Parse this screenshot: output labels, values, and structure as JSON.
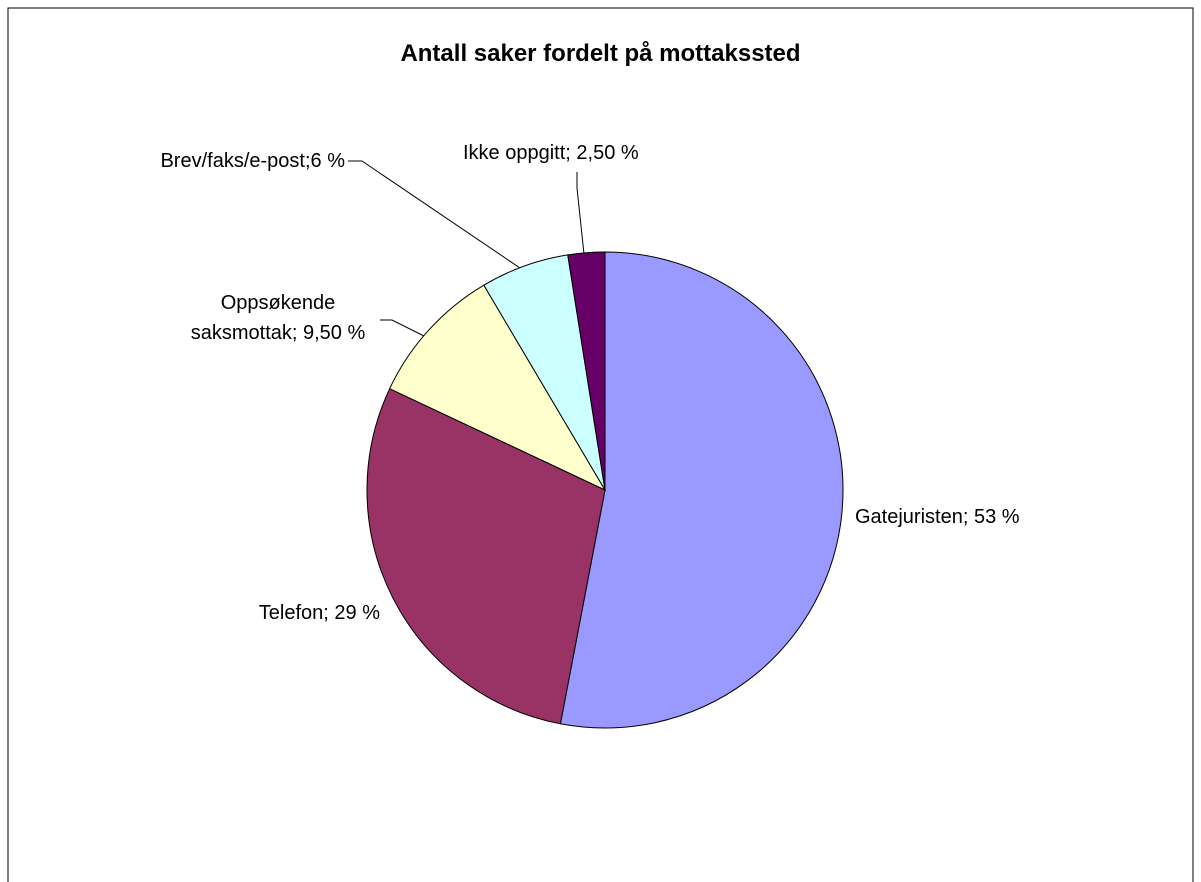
{
  "chart_data": {
    "type": "pie",
    "title": "Antall saker fordelt på mottakssted",
    "values": [
      53,
      29,
      9.5,
      6,
      2.5
    ],
    "value_labels": [
      "Gatejuristen; 53 %",
      "Telefon; 29 %",
      "Oppsøkende saksmottak; 9,50 %",
      "Brev/faks/e-post;6 %",
      "Ikke oppgitt; 2,50 %"
    ],
    "colors": [
      "#9999ff",
      "#993366",
      "#ffffcc",
      "#ccffff",
      "#660066"
    ]
  }
}
